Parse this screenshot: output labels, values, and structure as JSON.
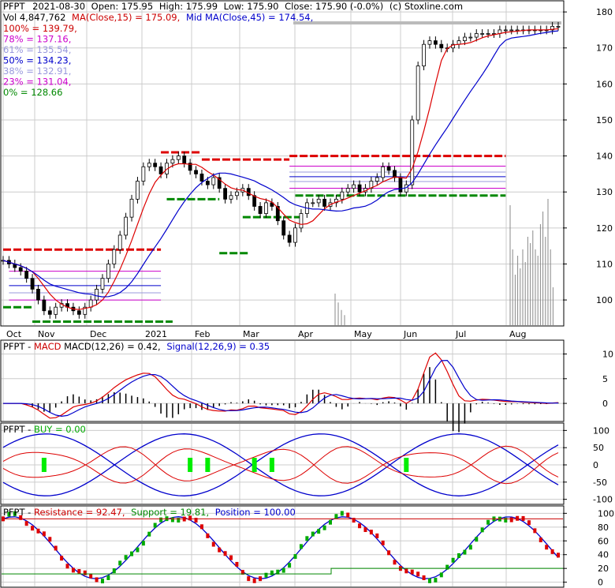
{
  "header": {
    "ticker": "PFPT",
    "date": "2021-08-30",
    "open": "Open: 175.95",
    "high": "High: 175.99",
    "low": "Low: 175.90",
    "close": "Close: 175.90 (-0.0%)",
    "source": "(c) Stoxline.com",
    "volume": "Vol 4,847,762",
    "ma15": "MA(Close,15) = 175.09,",
    "ma45": "Mid MA(Close,45) = 174.54,"
  },
  "fib_levels": [
    {
      "label": "100% = 139.79,",
      "color": "#cc0000"
    },
    {
      "label": "78% = 137.16,",
      "color": "#cc00cc"
    },
    {
      "label": "61% = 135.54,",
      "color": "#9999dd"
    },
    {
      "label": "50% = 134.23,",
      "color": "#0000cc"
    },
    {
      "label": "38% = 132.91,",
      "color": "#9999dd"
    },
    {
      "label": "23% = 131.04,",
      "color": "#cc00cc"
    },
    {
      "label": "0% = 128.66",
      "color": "#008800"
    }
  ],
  "macd_panel": {
    "ticker": "PFPT",
    "name": "MACD",
    "macd_text": "MACD(12,26) = 0.42,",
    "signal_text": "Signal(12,26,9) = 0.35"
  },
  "buy_panel": {
    "ticker": "PFPT",
    "buy_text": "BUY = 0.00"
  },
  "rs_panel": {
    "ticker": "PFPT",
    "resistance_text": "Resistance = 92.47,",
    "support_text": "Support = 19.81,",
    "position_text": "Position = 100.00"
  },
  "colors": {
    "up": "#00aa00",
    "down": "#dd0000",
    "ma_short": "#dd0000",
    "ma_mid": "#0000cc",
    "resistance": "#dd0000",
    "support": "#008800",
    "volume": "#888888",
    "grid": "#cccccc"
  },
  "chart_data": [
    {
      "type": "line",
      "panel": "price",
      "x_ticks": [
        "Oct",
        "Nov",
        "Dec",
        "2021",
        "Feb",
        "Mar",
        "Apr",
        "May",
        "Jun",
        "Jul",
        "Aug"
      ],
      "y_ticks": [
        100,
        110,
        120,
        130,
        140,
        150,
        160,
        170,
        180
      ],
      "ylim": [
        93,
        182
      ],
      "close": [
        111,
        110,
        109,
        108,
        106,
        103,
        100,
        97,
        96,
        98,
        99,
        98,
        97,
        96,
        98,
        100,
        103,
        106,
        110,
        114,
        118,
        123,
        128,
        133,
        137,
        138,
        137,
        135,
        138,
        139,
        140,
        138,
        136,
        135,
        133,
        132,
        134,
        131,
        128,
        129,
        130,
        131,
        129,
        126,
        124,
        127,
        126,
        122,
        118,
        116,
        120,
        124,
        127,
        127,
        128,
        126,
        127,
        128,
        130,
        131,
        132,
        130,
        131,
        133,
        134,
        137,
        136,
        134,
        130,
        132,
        150,
        165,
        171,
        172,
        171,
        170,
        170,
        171,
        172,
        173,
        173,
        174,
        174,
        174,
        174,
        175,
        175,
        175,
        175,
        175,
        175,
        175,
        175,
        175,
        176,
        176
      ],
      "resistance_levels": [
        {
          "value": 114,
          "start": 0,
          "end": 27
        },
        {
          "value": 141,
          "start": 27,
          "end": 34
        },
        {
          "value": 139,
          "start": 34,
          "end": 49
        },
        {
          "value": 140,
          "start": 49,
          "end": 86
        }
      ],
      "support_levels": [
        {
          "value": 98,
          "start": 0,
          "end": 5
        },
        {
          "value": 94,
          "start": 5,
          "end": 29
        },
        {
          "value": 128,
          "start": 28,
          "end": 37
        },
        {
          "value": 123,
          "start": 41,
          "end": 51
        },
        {
          "value": 113,
          "start": 37,
          "end": 42
        },
        {
          "value": 129,
          "start": 50,
          "end": 86
        }
      ],
      "volume_bars": [
        {
          "i": 51,
          "v": 0.25
        },
        {
          "i": 52,
          "v": 0.18
        },
        {
          "i": 53,
          "v": 0.12
        },
        {
          "i": 54,
          "v": 0.08
        },
        {
          "i": 78,
          "v": 0.95
        },
        {
          "i": 79,
          "v": 0.6
        },
        {
          "i": 80,
          "v": 0.4
        },
        {
          "i": 81,
          "v": 0.55
        },
        {
          "i": 82,
          "v": 0.45
        },
        {
          "i": 83,
          "v": 0.6
        },
        {
          "i": 84,
          "v": 0.5
        },
        {
          "i": 85,
          "v": 0.7
        },
        {
          "i": 86,
          "v": 0.65
        },
        {
          "i": 87,
          "v": 0.75
        },
        {
          "i": 88,
          "v": 0.6
        },
        {
          "i": 89,
          "v": 0.55
        },
        {
          "i": 90,
          "v": 0.8
        },
        {
          "i": 91,
          "v": 0.9
        },
        {
          "i": 92,
          "v": 0.7
        },
        {
          "i": 93,
          "v": 1.0
        },
        {
          "i": 94,
          "v": 0.6
        },
        {
          "i": 95,
          "v": 0.3
        }
      ]
    },
    {
      "type": "line",
      "panel": "macd",
      "y_ticks": [
        0,
        5,
        10
      ],
      "ylim": [
        -3.5,
        12
      ]
    },
    {
      "type": "line",
      "panel": "buy",
      "y_ticks": [
        -100,
        -50,
        0,
        50,
        100
      ],
      "ylim": [
        -110,
        110
      ]
    },
    {
      "type": "line",
      "panel": "resistance_support",
      "y_ticks": [
        0,
        20,
        40,
        60,
        80,
        100
      ],
      "ylim": [
        -5,
        105
      ]
    }
  ]
}
